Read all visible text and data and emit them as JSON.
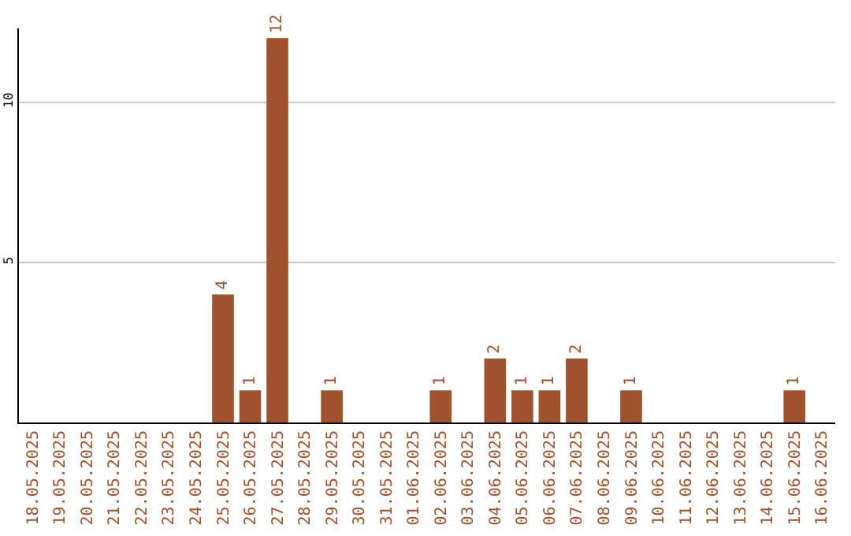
{
  "chart_data": {
    "type": "bar",
    "categories": [
      "18.05.2025",
      "19.05.2025",
      "20.05.2025",
      "21.05.2025",
      "22.05.2025",
      "23.05.2025",
      "24.05.2025",
      "25.05.2025",
      "26.05.2025",
      "27.05.2025",
      "28.05.2025",
      "29.05.2025",
      "30.05.2025",
      "31.05.2025",
      "01.06.2025",
      "02.06.2025",
      "03.06.2025",
      "04.06.2025",
      "05.06.2025",
      "06.06.2025",
      "07.06.2025",
      "08.06.2025",
      "09.06.2025",
      "10.06.2025",
      "11.06.2025",
      "12.06.2025",
      "13.06.2025",
      "14.06.2025",
      "15.06.2025",
      "16.06.2025"
    ],
    "values": [
      0,
      0,
      0,
      0,
      0,
      0,
      0,
      4,
      1,
      12,
      0,
      1,
      0,
      0,
      0,
      1,
      0,
      2,
      1,
      1,
      2,
      0,
      1,
      0,
      0,
      0,
      0,
      0,
      1,
      0
    ],
    "value_labels": [
      null,
      null,
      null,
      null,
      null,
      null,
      null,
      "4",
      "1",
      "12",
      null,
      "1",
      null,
      null,
      null,
      "1",
      null,
      "2",
      "1",
      "1",
      "2",
      null,
      "1",
      null,
      null,
      null,
      null,
      null,
      "1",
      null
    ],
    "color": "#a0522d",
    "ylim": [
      0,
      12.3
    ],
    "yticks": [
      5,
      10
    ],
    "grid": "y",
    "legend": false
  }
}
